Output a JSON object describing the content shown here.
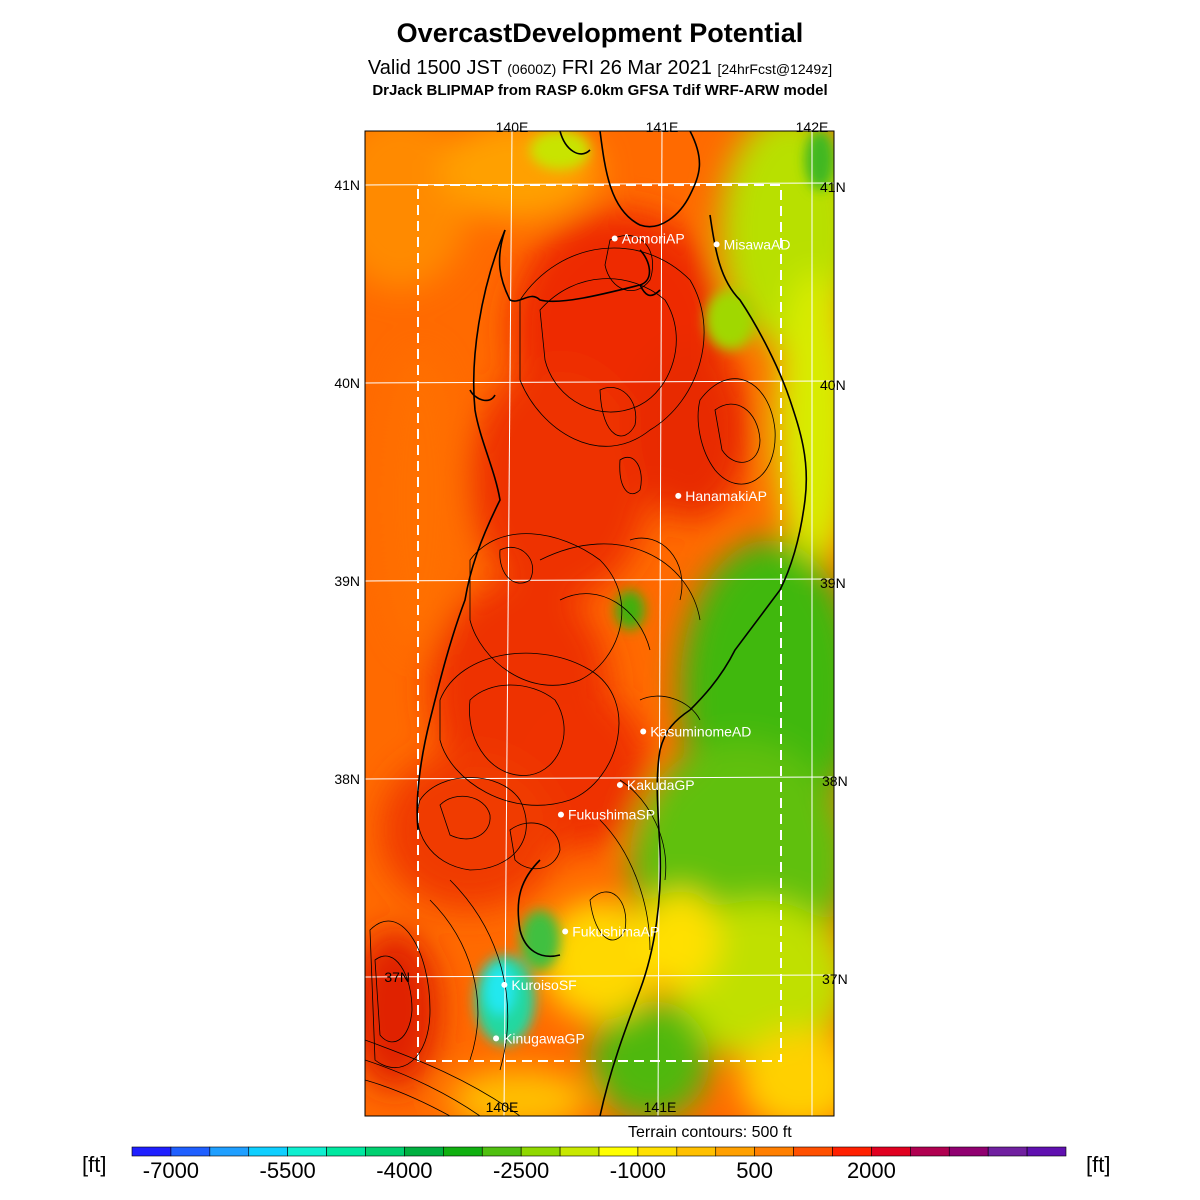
{
  "title": "OvercastDevelopment Potential",
  "subtitle": {
    "main": "Valid 1500 JST",
    "utc": "(0600Z)",
    "date": "FRI 26 Mar 2021",
    "forecast": "[24hrFcst@1249z]"
  },
  "model_line": "DrJack BLIPMAP from RASP 6.0km GFSA Tdif WRF-ARW model",
  "map": {
    "lon_labels_top": [
      "140E",
      "141E",
      "142E"
    ],
    "lon_labels_bottom": [
      "140E",
      "141E"
    ],
    "lat_labels_left": [
      "41N",
      "40N",
      "39N",
      "38N",
      "37N"
    ],
    "lat_labels_right": [
      "41N",
      "40N",
      "39N",
      "38N",
      "37N"
    ],
    "stations": [
      {
        "name": "AomoriAP",
        "lat": 40.73,
        "lon": 140.69
      },
      {
        "name": "MisawaAD",
        "lat": 40.7,
        "lon": 141.37
      },
      {
        "name": "HanamakiAP",
        "lat": 39.43,
        "lon": 141.14
      },
      {
        "name": "KasuminomeAD",
        "lat": 38.24,
        "lon": 140.93
      },
      {
        "name": "KakudaGP",
        "lat": 37.97,
        "lon": 140.78
      },
      {
        "name": "FukushimaSP",
        "lat": 37.82,
        "lon": 140.39
      },
      {
        "name": "FukushimaAP",
        "lat": 37.23,
        "lon": 140.43
      },
      {
        "name": "KuroisoSF",
        "lat": 36.96,
        "lon": 140.03
      },
      {
        "name": "KinugawaGP",
        "lat": 36.69,
        "lon": 139.98
      }
    ],
    "terrain_note": "Terrain contours: 500 ft"
  },
  "colorbar": {
    "unit_left": "[ft]",
    "unit_right": "[ft]",
    "tick_labels": [
      "-7000",
      "-5500",
      "-4000",
      "-2500",
      "-1000",
      "500",
      "2000"
    ],
    "colors": [
      "#1f1fff",
      "#1f5fff",
      "#1f9fff",
      "#0fcfff",
      "#0fefd0",
      "#00e8a0",
      "#00d070",
      "#00b040",
      "#10b010",
      "#50c010",
      "#90d800",
      "#c8e800",
      "#ffff00",
      "#ffe000",
      "#ffc000",
      "#ffa000",
      "#ff7f00",
      "#ff5000",
      "#ff2000",
      "#e00020",
      "#b00050",
      "#900070",
      "#7020a0",
      "#6010b0"
    ]
  }
}
